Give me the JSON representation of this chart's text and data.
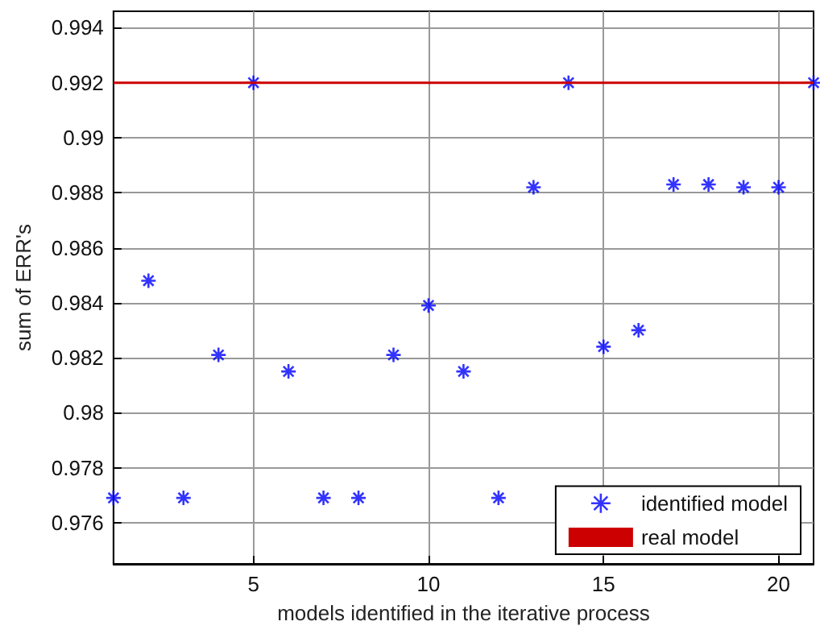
{
  "chart_data": {
    "type": "scatter",
    "xlabel": "models identified in the iterative process",
    "ylabel": "sum of ERR's",
    "xlim": [
      1,
      21
    ],
    "xticks": [
      5,
      10,
      15,
      20
    ],
    "ylim": [
      0.9745,
      0.9946
    ],
    "yticks": [
      0.976,
      0.978,
      0.98,
      0.982,
      0.984,
      0.986,
      0.988,
      0.99,
      0.992,
      0.994
    ],
    "grid": true,
    "legend": "bottom right",
    "marker": "cross",
    "series": [
      {
        "name": "identified model",
        "color": "#0000ff",
        "x": [
          1,
          2,
          3,
          4,
          5,
          6,
          7,
          8,
          9,
          10,
          11,
          12,
          13,
          14,
          15,
          16,
          17,
          18,
          19,
          20,
          21
        ],
        "values": [
          0.9769,
          0.9848,
          0.9769,
          0.9821,
          0.992,
          0.9815,
          0.9769,
          0.9769,
          0.9821,
          0.9839,
          0.9815,
          0.9769,
          0.9882,
          0.992,
          0.9824,
          0.983,
          0.9883,
          0.9883,
          0.9882,
          0.9882,
          0.992
        ]
      },
      {
        "name": "real model",
        "type": "line",
        "color": "#cc0000",
        "marker": "none",
        "x": [
          1,
          21
        ],
        "values": [
          0.992,
          0.992
        ]
      }
    ]
  }
}
